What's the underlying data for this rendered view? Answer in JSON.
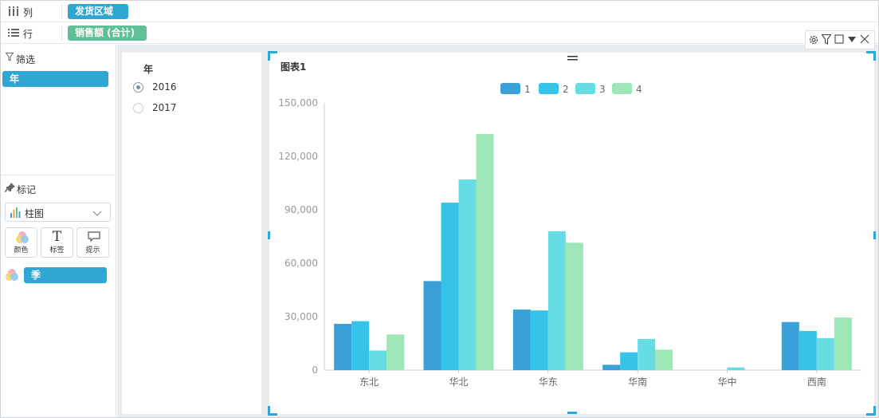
{
  "shelves": {
    "columns": {
      "label": "列",
      "pill": "发货区域"
    },
    "rows": {
      "label": "行",
      "pill": "销售额 (合计)"
    }
  },
  "filter": {
    "title": "筛选",
    "pill": "年"
  },
  "marks": {
    "title": "标记",
    "chart_type": "柱图",
    "buttons": {
      "color": "颜色",
      "label": "标签",
      "tooltip": "提示"
    },
    "color_pill": "季"
  },
  "year_filter": {
    "title": "年",
    "options": [
      "2016",
      "2017"
    ],
    "selected": "2016"
  },
  "colors": {
    "accent": "#2fa7d4",
    "green_pill": "#5fbf96"
  },
  "chart_data": {
    "type": "bar",
    "title": "图表1",
    "categories": [
      "东北",
      "华北",
      "华东",
      "华南",
      "华中",
      "西南"
    ],
    "series": [
      {
        "name": "1",
        "color": "#3b9fd8",
        "values": [
          26000,
          50000,
          34000,
          3000,
          0,
          27000
        ]
      },
      {
        "name": "2",
        "color": "#36c3e8",
        "values": [
          27500,
          94000,
          33500,
          10000,
          0,
          22000
        ]
      },
      {
        "name": "3",
        "color": "#66dde3",
        "values": [
          11000,
          107000,
          78000,
          17500,
          1500,
          18000
        ]
      },
      {
        "name": "4",
        "color": "#9de6b6",
        "values": [
          20000,
          132500,
          71500,
          11500,
          0,
          29500
        ]
      }
    ],
    "ylim": [
      0,
      150000
    ],
    "yticks": [
      "0",
      "30,000",
      "60,000",
      "90,000",
      "120,000",
      "150,000"
    ],
    "legend_position": "top-center"
  }
}
